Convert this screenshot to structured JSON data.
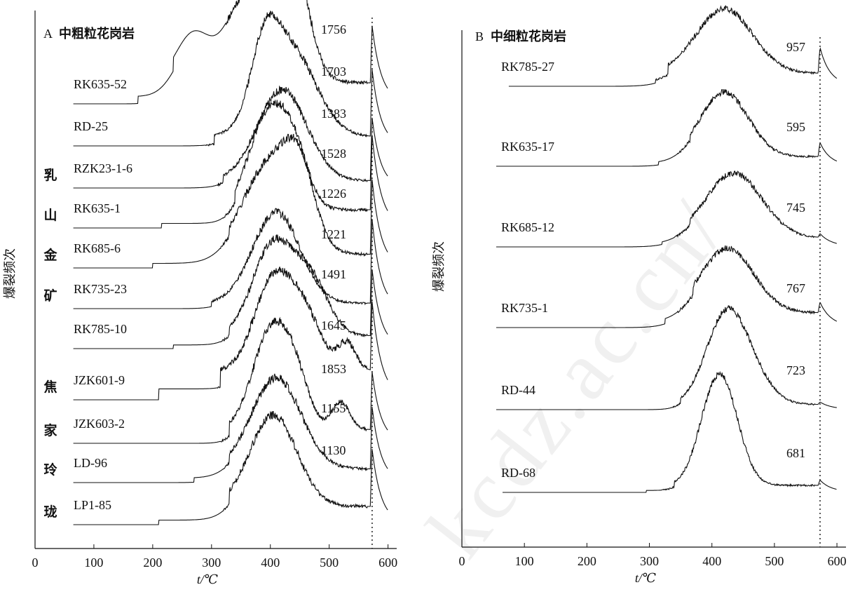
{
  "watermark": "kcdz.ac.cn/",
  "chart_data": [
    {
      "type": "line",
      "panel_label": "A",
      "title": "中粗粒花岗岩",
      "xlabel": "t/℃",
      "ylabel": "爆裂频次",
      "xlim": [
        0,
        610
      ],
      "xticks": [
        0,
        100,
        200,
        300,
        400,
        500,
        600
      ],
      "reference_line_x": 573,
      "group_labels": [
        {
          "text": "乳",
          "row": 2
        },
        {
          "text": "山",
          "row": 3
        },
        {
          "text": "金",
          "row": 4
        },
        {
          "text": "矿",
          "row": 5
        },
        {
          "text": "焦",
          "row": 7
        },
        {
          "text": "家",
          "row": 8
        },
        {
          "text": "玲",
          "row": 9
        },
        {
          "text": "珑",
          "row": 10
        }
      ],
      "series": [
        {
          "name": "RK635-52",
          "count": "1756",
          "start": 65,
          "steps": [
            [
              175,
              0.08
            ],
            [
              235,
              0.15
            ]
          ],
          "peaks": [
            [
              270,
              0.55,
              30
            ],
            [
              345,
              0.55,
              28
            ],
            [
              405,
              1.0,
              40
            ],
            [
              440,
              0.8,
              25
            ]
          ],
          "rise": 345,
          "decay": 55,
          "quartz": 0.7
        },
        {
          "name": "RD-25",
          "count": "1703",
          "start": 65,
          "steps": [
            [
              305,
              0.1
            ]
          ],
          "peaks": [
            [
              430,
              1.0,
              45
            ],
            [
              390,
              0.6,
              22
            ]
          ],
          "rise": 310,
          "decay": 50,
          "quartz": 0.8
        },
        {
          "name": "RZK23-1-6",
          "count": "1383",
          "start": 65,
          "steps": [
            [
              320,
              0.08
            ]
          ],
          "peaks": [
            [
              420,
              1.0,
              42
            ]
          ],
          "rise": 330,
          "decay": 55,
          "quartz": 0.75
        },
        {
          "name": "RK635-1",
          "count": "1528",
          "start": 65,
          "steps": [
            [
              215,
              0.05
            ],
            [
              340,
              0.15
            ]
          ],
          "peaks": [
            [
              395,
              1.0,
              32
            ],
            [
              440,
              0.55,
              25
            ]
          ],
          "rise": 340,
          "decay": 50,
          "quartz": 0.9
        },
        {
          "name": "RK685-6",
          "count": "1226",
          "start": 65,
          "steps": [
            [
              200,
              0.05
            ],
            [
              330,
              0.1
            ]
          ],
          "peaks": [
            [
              400,
              1.0,
              45
            ],
            [
              450,
              0.65,
              25
            ]
          ],
          "rise": 335,
          "decay": 50,
          "quartz": 0.9
        },
        {
          "name": "RK735-23",
          "count": "1221",
          "start": 65,
          "steps": [
            [
              300,
              0.06
            ]
          ],
          "peaks": [
            [
              410,
              1.0,
              40
            ]
          ],
          "rise": 320,
          "decay": 55,
          "quartz": 1.0
        },
        {
          "name": "RK785-10",
          "count": "1491",
          "start": 65,
          "steps": [
            [
              235,
              0.04
            ],
            [
              330,
              0.1
            ]
          ],
          "peaks": [
            [
              405,
              1.0,
              35
            ],
            [
              470,
              0.55,
              30
            ]
          ],
          "rise": 335,
          "decay": 60,
          "quartz": 0.8
        },
        {
          "name": "JZK601-9",
          "count": "1645",
          "start": 65,
          "steps": [
            [
              210,
              0.12
            ],
            [
              315,
              0.2
            ]
          ],
          "peaks": [
            [
              405,
              1.0,
              32
            ],
            [
              460,
              0.55,
              28
            ],
            [
              530,
              0.3,
              15
            ]
          ],
          "rise": 330,
          "decay": 60,
          "quartz": 0.85
        },
        {
          "name": "JZK603-2",
          "count": "1853",
          "start": 65,
          "steps": [
            [
              330,
              0.15
            ]
          ],
          "peaks": [
            [
              398,
              1.0,
              30
            ],
            [
              440,
              0.55,
              25
            ],
            [
              520,
              0.3,
              15
            ]
          ],
          "rise": 335,
          "decay": 60,
          "quartz": 0.7
        },
        {
          "name": "LD-96",
          "count": "1155",
          "start": 65,
          "steps": [
            [
              270,
              0.05
            ],
            [
              330,
              0.1
            ]
          ],
          "peaks": [
            [
              410,
              1.0,
              42
            ]
          ],
          "rise": 340,
          "decay": 55,
          "quartz": 0.75
        },
        {
          "name": "LP1-85",
          "count": "1130",
          "start": 65,
          "steps": [
            [
              210,
              0.05
            ],
            [
              330,
              0.15
            ]
          ],
          "peaks": [
            [
              405,
              1.0,
              40
            ]
          ],
          "rise": 340,
          "decay": 55,
          "quartz": 0.7
        }
      ]
    },
    {
      "type": "line",
      "panel_label": "B",
      "title": "中细粒花岗岩",
      "xlabel": "t/℃",
      "ylabel": "爆裂频次",
      "xlim": [
        0,
        610
      ],
      "xticks": [
        0,
        100,
        200,
        300,
        400,
        500,
        600
      ],
      "reference_line_x": 573,
      "series": [
        {
          "name": "RK785-27",
          "count": "957",
          "start": 75,
          "steps": [
            [
              310,
              0.05
            ],
            [
              330,
              0.15
            ]
          ],
          "peaks": [
            [
              420,
              1.0,
              45
            ]
          ],
          "rise": 330,
          "decay": 60,
          "quartz": 0.45
        },
        {
          "name": "RK635-17",
          "count": "595",
          "start": 55,
          "steps": [
            [
              315,
              0.05
            ],
            [
              365,
              0.1
            ]
          ],
          "peaks": [
            [
              420,
              1.0,
              38
            ]
          ],
          "rise": 365,
          "decay": 55,
          "quartz": 0.25
        },
        {
          "name": "RK685-12",
          "count": "745",
          "start": 55,
          "steps": [
            [
              320,
              0.04
            ],
            [
              365,
              0.1
            ]
          ],
          "peaks": [
            [
              435,
              1.0,
              45
            ]
          ],
          "rise": 360,
          "decay": 55,
          "quartz": 0.08
        },
        {
          "name": "RK735-1",
          "count": "767",
          "start": 55,
          "steps": [
            [
              325,
              0.08
            ],
            [
              370,
              0.15
            ]
          ],
          "peaks": [
            [
              425,
              1.0,
              42
            ]
          ],
          "rise": 365,
          "decay": 60,
          "quartz": 0.2
        },
        {
          "name": "RD-44",
          "count": "723",
          "start": 55,
          "steps": [
            [
              350,
              0.08
            ]
          ],
          "peaks": [
            [
              415,
              0.85,
              30
            ],
            [
              445,
              0.8,
              35
            ]
          ],
          "rise": 355,
          "decay": 55,
          "quartz": 0.05
        },
        {
          "name": "RD-68",
          "count": "681",
          "start": 65,
          "steps": [
            [
              295,
              0.03
            ],
            [
              340,
              0.08
            ]
          ],
          "peaks": [
            [
              400,
              1.0,
              25
            ],
            [
              425,
              0.95,
              25
            ]
          ],
          "rise": 340,
          "decay": 60,
          "quartz": 0.1
        }
      ]
    }
  ]
}
